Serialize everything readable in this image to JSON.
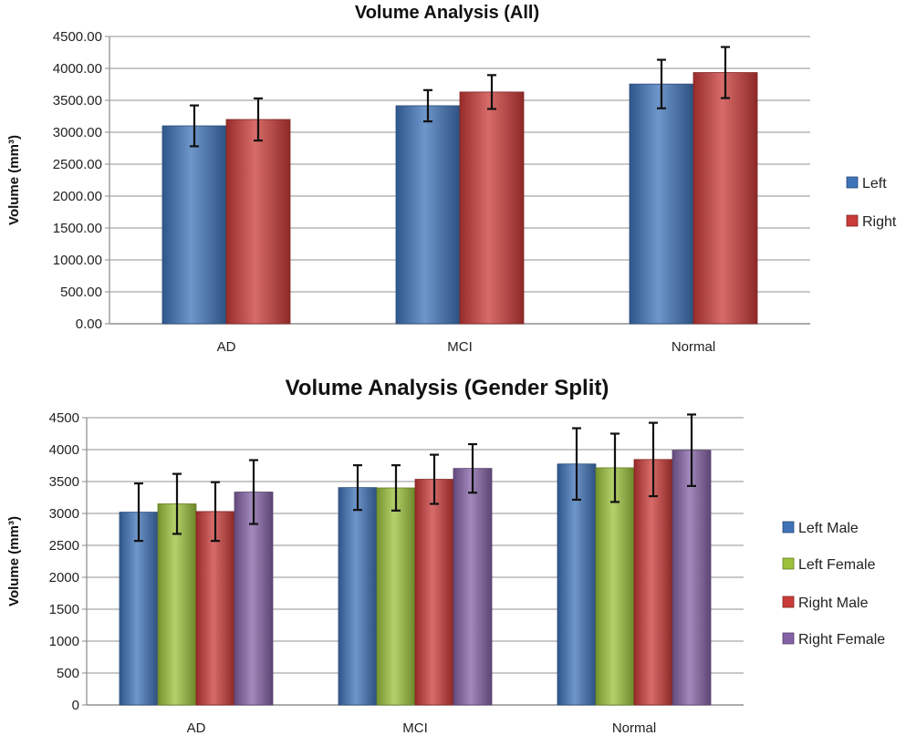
{
  "chart_data": [
    {
      "type": "bar",
      "title": "Volume Analysis (All)",
      "xlabel": "",
      "ylabel": "Volume (mm³)",
      "ylim": [
        0,
        4500
      ],
      "ytick_step": 500,
      "ytick_decimals": 2,
      "grid": true,
      "legend_position": "right",
      "categories": [
        "AD",
        "MCI",
        "Normal"
      ],
      "series": [
        {
          "name": "Left",
          "color": "#3f73b8",
          "values": [
            3100,
            3415,
            3755
          ],
          "errors": [
            320,
            245,
            380
          ]
        },
        {
          "name": "Right",
          "color": "#c93b38",
          "values": [
            3200,
            3630,
            3935
          ],
          "errors": [
            330,
            265,
            400
          ]
        }
      ]
    },
    {
      "type": "bar",
      "title": "Volume Analysis (Gender Split)",
      "xlabel": "",
      "ylabel": "Volume (mm³)",
      "ylim": [
        0,
        4500
      ],
      "ytick_step": 500,
      "ytick_decimals": 0,
      "grid": true,
      "legend_position": "right",
      "categories": [
        "AD",
        "MCI",
        "Normal"
      ],
      "series": [
        {
          "name": "Left Male",
          "color": "#3f73b8",
          "values": [
            3020,
            3405,
            3775
          ],
          "errors": [
            450,
            350,
            560
          ]
        },
        {
          "name": "Left Female",
          "color": "#9cc23a",
          "values": [
            3150,
            3400,
            3715
          ],
          "errors": [
            470,
            355,
            535
          ]
        },
        {
          "name": "Right Male",
          "color": "#c93b38",
          "values": [
            3030,
            3535,
            3845
          ],
          "errors": [
            460,
            385,
            575
          ]
        },
        {
          "name": "Right Female",
          "color": "#8462a6",
          "values": [
            3335,
            3705,
            3990
          ],
          "errors": [
            500,
            380,
            560
          ]
        }
      ]
    }
  ]
}
